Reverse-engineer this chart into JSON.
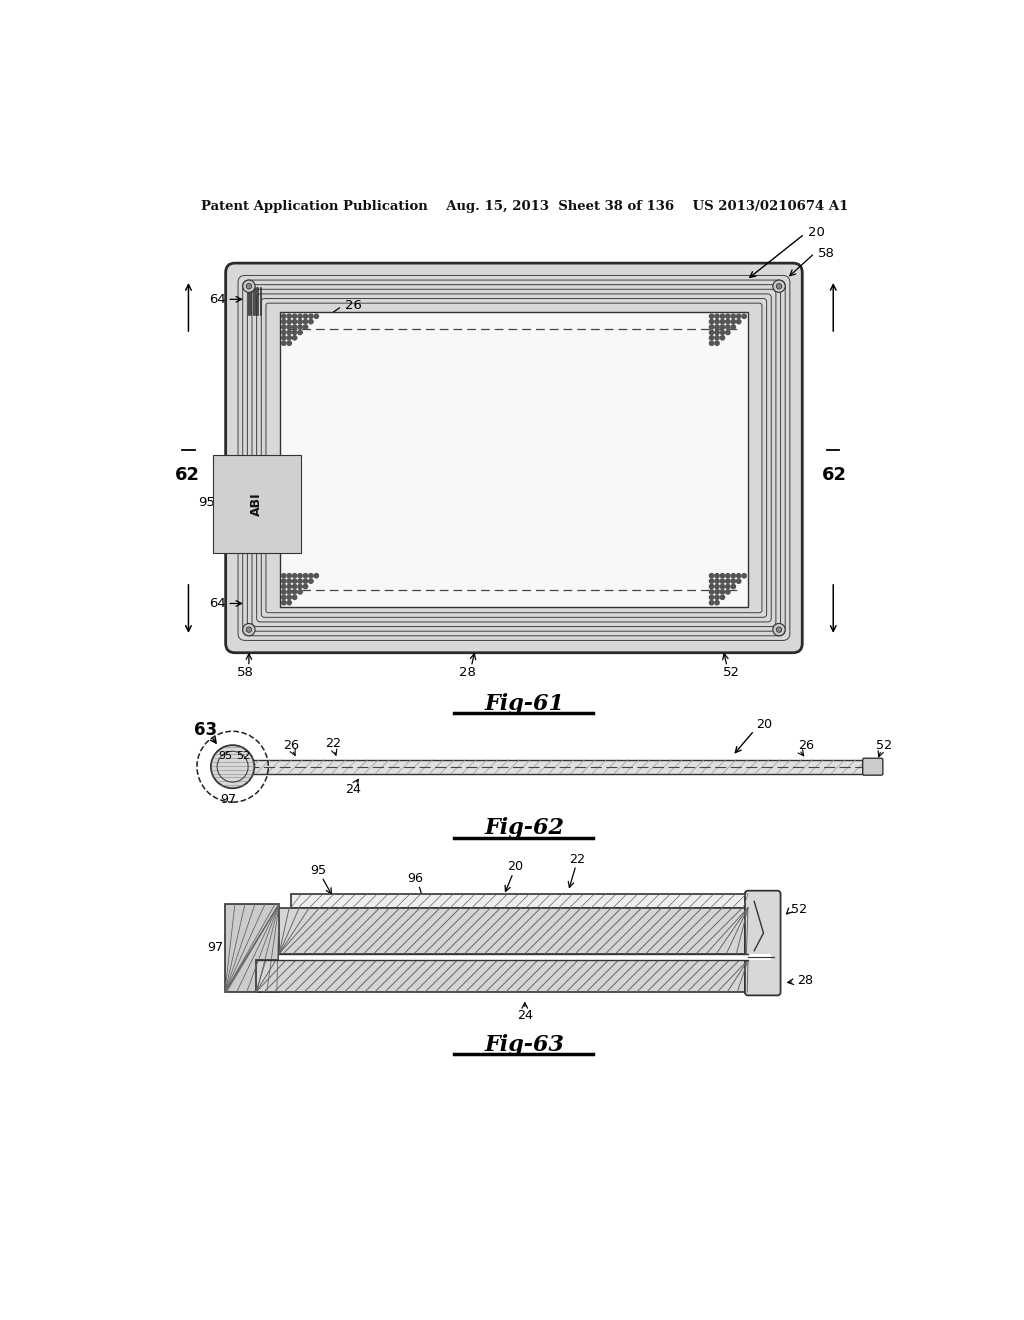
{
  "bg_color": "#ffffff",
  "header_text": "Patent Application Publication    Aug. 15, 2013  Sheet 38 of 136    US 2013/0210674 A1",
  "fig61_label": "Fig-61",
  "fig62_label": "Fig-62",
  "fig63_label": "Fig-63",
  "line_color": "#1a1a1a",
  "gray_light": "#e0e0e0",
  "gray_med": "#c0c0c0",
  "gray_dark": "#888888"
}
